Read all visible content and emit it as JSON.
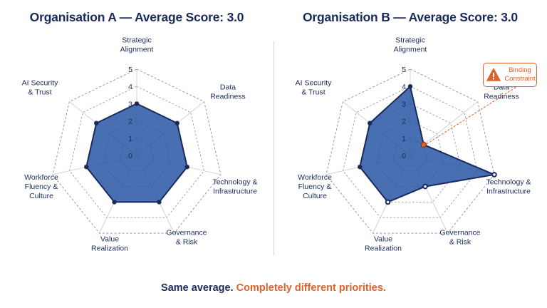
{
  "titles": {
    "a": "Organisation A — Average Score: 3.0",
    "b": "Organisation B — Average Score: 3.0"
  },
  "footer": {
    "part1": "Same average.",
    "part2": "Completely different priorities."
  },
  "callout": {
    "label_line1": "Binding",
    "label_line2": "Constraint",
    "icon": "warning-icon",
    "target_axis": "Data Readiness"
  },
  "colors": {
    "fill": "#1f4fa0",
    "stroke": "#1b2a5c",
    "accent": "#e0622a",
    "text": "#1b2a5c"
  },
  "chart_data": [
    {
      "type": "radar",
      "title": "Organisation A — Average Score: 3.0",
      "axes": [
        [
          "Strategic",
          "Alignment"
        ],
        [
          "Data",
          "Readiness"
        ],
        [
          "Technology &",
          "Infrastructure"
        ],
        [
          "Governance",
          "& Risk"
        ],
        [
          "Value",
          "Realization"
        ],
        [
          "Workforce",
          "Fluency &",
          "Culture"
        ],
        [
          "AI Security",
          "& Trust"
        ]
      ],
      "ticks": [
        "0",
        "1",
        "2",
        "3",
        "4",
        "5"
      ],
      "range": [
        0,
        5
      ],
      "series": [
        {
          "values": [
            3,
            3,
            3,
            3,
            3,
            3,
            3
          ]
        }
      ]
    },
    {
      "type": "radar",
      "title": "Organisation B — Average Score: 3.0",
      "axes": [
        [
          "Strategic",
          "Alignment"
        ],
        [
          "Data",
          "Readiness"
        ],
        [
          "Technology &",
          "Infrastructure"
        ],
        [
          "Governance",
          "& Risk"
        ],
        [
          "Value",
          "Realization"
        ],
        [
          "Workforce",
          "Fluency &",
          "Culture"
        ],
        [
          "AI Security",
          "& Trust"
        ]
      ],
      "ticks": [
        "0",
        "1",
        "2",
        "3",
        "4",
        "5"
      ],
      "range": [
        0,
        5
      ],
      "series": [
        {
          "values": [
            4,
            1,
            5,
            2,
            3,
            3,
            3
          ]
        }
      ]
    }
  ]
}
